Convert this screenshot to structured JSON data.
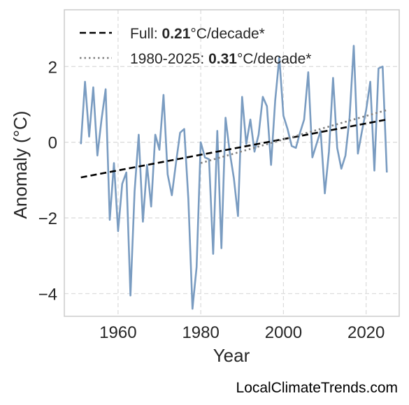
{
  "chart_data": {
    "type": "line",
    "title": "",
    "xlabel": "Year",
    "ylabel": "Anomaly (°C)",
    "xlim": [
      1947,
      2028
    ],
    "ylim": [
      -4.6,
      3.5
    ],
    "xticks": [
      1960,
      1980,
      2000,
      2020
    ],
    "yticks": [
      -4,
      -2,
      0,
      2
    ],
    "ytick_labels": [
      "−4",
      "−2",
      "0",
      "2"
    ],
    "grid": true,
    "legend_position": "top-left",
    "series": [
      {
        "kind": "data",
        "color": "#7a9cc1",
        "x": [
          1951,
          1952,
          1953,
          1954,
          1955,
          1956,
          1957,
          1958,
          1959,
          1960,
          1961,
          1962,
          1963,
          1964,
          1965,
          1966,
          1967,
          1968,
          1969,
          1970,
          1971,
          1972,
          1973,
          1974,
          1975,
          1976,
          1977,
          1978,
          1979,
          1980,
          1981,
          1982,
          1983,
          1984,
          1985,
          1986,
          1987,
          1988,
          1989,
          1990,
          1991,
          1992,
          1993,
          1994,
          1995,
          1996,
          1997,
          1998,
          1999,
          2000,
          2001,
          2002,
          2003,
          2004,
          2005,
          2006,
          2007,
          2008,
          2009,
          2010,
          2011,
          2012,
          2013,
          2014,
          2015,
          2016,
          2017,
          2018,
          2019,
          2020,
          2021,
          2022,
          2023,
          2024,
          2025
        ],
        "y": [
          -0.05,
          1.6,
          0.15,
          1.45,
          -0.35,
          0.6,
          1.4,
          -2.05,
          -0.55,
          -2.35,
          -1.1,
          -0.8,
          -4.05,
          -1.3,
          0.2,
          -2.1,
          -0.6,
          -1.7,
          0.2,
          -0.2,
          1.25,
          -0.85,
          -1.4,
          -0.55,
          0.25,
          0.35,
          -1.5,
          -4.4,
          -3.3,
          0.0,
          -0.4,
          -0.45,
          -2.95,
          0.3,
          -2.8,
          0.65,
          -0.25,
          -0.95,
          -1.95,
          1.2,
          -0.05,
          0.6,
          -0.25,
          0.2,
          1.2,
          0.95,
          -0.6,
          1.1,
          2.25,
          0.7,
          0.35,
          -0.1,
          -0.15,
          0.25,
          0.6,
          1.85,
          -0.4,
          -0.05,
          0.3,
          -1.35,
          -0.25,
          1.7,
          -0.15,
          -0.7,
          -0.35,
          0.65,
          2.55,
          -0.3,
          0.3,
          0.85,
          1.6,
          -0.75,
          1.95,
          2.0,
          -0.8
        ]
      },
      {
        "kind": "trend",
        "name": "Full",
        "color": "#000000",
        "dash": "dashed",
        "x": [
          1951,
          2025
        ],
        "y": [
          -0.93,
          0.6
        ]
      },
      {
        "kind": "trend",
        "name": "1980-2025",
        "color": "#808080",
        "dash": "dotted",
        "x": [
          1980,
          2025
        ],
        "y": [
          -0.55,
          0.85
        ]
      }
    ],
    "legend": [
      {
        "prefix": "Full: ",
        "value": "0.21",
        "suffix": "°C/decade*"
      },
      {
        "prefix": "1980-2025: ",
        "value": "0.31",
        "suffix": "°C/decade*"
      }
    ],
    "source_text": "LocalClimateTrends.com"
  }
}
